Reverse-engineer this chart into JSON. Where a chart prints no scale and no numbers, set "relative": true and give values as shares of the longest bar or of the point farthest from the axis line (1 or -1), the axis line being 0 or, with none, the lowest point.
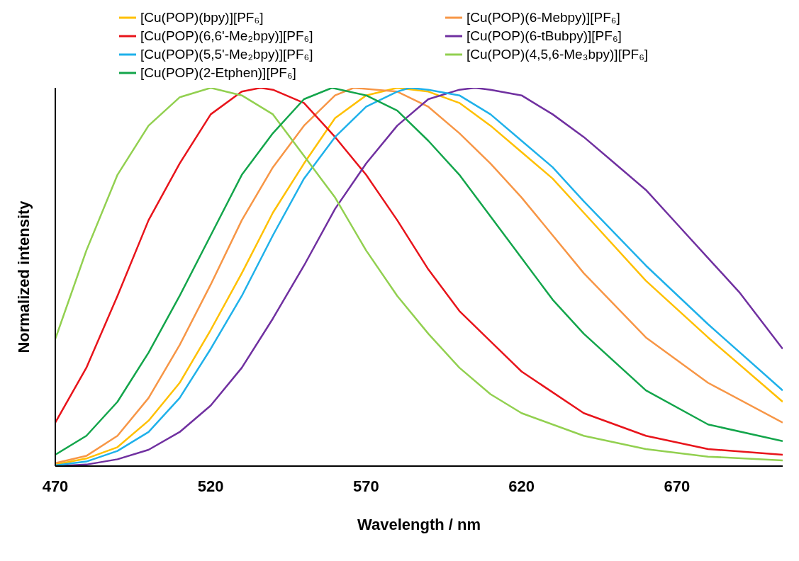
{
  "chart_data": {
    "type": "line",
    "relative": true,
    "xlabel": "Wavelength / nm",
    "ylabel": "Normalized intensity",
    "xlim": [
      470,
      704
    ],
    "xticks": [
      470,
      520,
      570,
      620,
      670
    ],
    "legend": "top",
    "marker": "none",
    "line_style": "solid",
    "series": [
      {
        "name": "[Cu(POP)(bpy)][PF₆]",
        "color": "#ffc000",
        "x": [
          470,
          480,
          490,
          500,
          510,
          520,
          530,
          540,
          550,
          560,
          570,
          580,
          590,
          600,
          610,
          620,
          630,
          640,
          660,
          680,
          704
        ],
        "values": [
          0.004,
          0.02,
          0.05,
          0.12,
          0.22,
          0.36,
          0.51,
          0.67,
          0.8,
          0.92,
          0.98,
          1,
          0.99,
          0.96,
          0.9,
          0.83,
          0.76,
          0.67,
          0.49,
          0.34,
          0.17
        ]
      },
      {
        "name": "[Cu(POP)(6-Mebpy)][PF₆]",
        "color": "#f79646",
        "x": [
          470,
          480,
          490,
          500,
          510,
          520,
          530,
          540,
          550,
          560,
          566,
          580,
          590,
          600,
          610,
          620,
          630,
          640,
          660,
          680,
          704
        ],
        "values": [
          0.008,
          0.027,
          0.08,
          0.18,
          0.32,
          0.48,
          0.65,
          0.79,
          0.9,
          0.98,
          1,
          0.99,
          0.95,
          0.88,
          0.8,
          0.71,
          0.61,
          0.51,
          0.34,
          0.22,
          0.115
        ]
      },
      {
        "name": "[Cu(POP)(6,6'-Me₂bpy)][PF₆]",
        "color": "#e8141b",
        "x": [
          470,
          480,
          490,
          500,
          510,
          520,
          530,
          536,
          540,
          550,
          560,
          570,
          580,
          590,
          600,
          610,
          620,
          640,
          660,
          680,
          704
        ],
        "values": [
          0.115,
          0.26,
          0.45,
          0.65,
          0.8,
          0.93,
          0.99,
          1,
          0.995,
          0.96,
          0.87,
          0.77,
          0.65,
          0.52,
          0.41,
          0.33,
          0.25,
          0.14,
          0.08,
          0.045,
          0.03
        ]
      },
      {
        "name": "[Cu(POP)(6-tBubpy)][PF₆]",
        "color": "#7030a0",
        "x": [
          470,
          480,
          490,
          500,
          510,
          520,
          530,
          540,
          550,
          560,
          570,
          580,
          590,
          600,
          605,
          610,
          620,
          630,
          640,
          650,
          660,
          670,
          680,
          690,
          704
        ],
        "values": [
          0,
          0.004,
          0.018,
          0.043,
          0.09,
          0.16,
          0.26,
          0.39,
          0.53,
          0.68,
          0.8,
          0.9,
          0.97,
          0.995,
          1,
          0.995,
          0.98,
          0.93,
          0.87,
          0.8,
          0.73,
          0.64,
          0.55,
          0.46,
          0.31
        ]
      },
      {
        "name": "[Cu(POP)(5,5'-Me₂bpy)][PF₆]",
        "color": "#1fb1ea",
        "x": [
          470,
          480,
          490,
          500,
          510,
          520,
          530,
          540,
          550,
          560,
          570,
          580,
          584,
          590,
          600,
          610,
          620,
          630,
          640,
          660,
          680,
          704
        ],
        "values": [
          0.002,
          0.012,
          0.04,
          0.09,
          0.18,
          0.31,
          0.45,
          0.61,
          0.76,
          0.87,
          0.95,
          0.99,
          1,
          0.995,
          0.98,
          0.93,
          0.86,
          0.79,
          0.7,
          0.53,
          0.375,
          0.2
        ]
      },
      {
        "name": "[Cu(POP)(4,5,6-Me₃bpy)][PF₆]",
        "color": "#92d050",
        "x": [
          470,
          480,
          490,
          500,
          510,
          520,
          530,
          540,
          550,
          560,
          570,
          580,
          590,
          600,
          610,
          620,
          640,
          660,
          680,
          704
        ],
        "values": [
          0.336,
          0.57,
          0.77,
          0.9,
          0.975,
          1,
          0.98,
          0.93,
          0.82,
          0.71,
          0.57,
          0.45,
          0.35,
          0.26,
          0.19,
          0.14,
          0.08,
          0.045,
          0.025,
          0.015
        ]
      },
      {
        "name": "[Cu(POP)(2-Etphen)][PF₆]",
        "color": "#13a54b",
        "x": [
          470,
          480,
          490,
          500,
          510,
          520,
          530,
          540,
          550,
          559,
          570,
          580,
          590,
          600,
          610,
          620,
          630,
          640,
          660,
          680,
          704
        ],
        "values": [
          0.03,
          0.08,
          0.17,
          0.3,
          0.45,
          0.61,
          0.77,
          0.88,
          0.97,
          1,
          0.98,
          0.94,
          0.86,
          0.77,
          0.66,
          0.55,
          0.44,
          0.35,
          0.2,
          0.11,
          0.066
        ]
      }
    ]
  }
}
